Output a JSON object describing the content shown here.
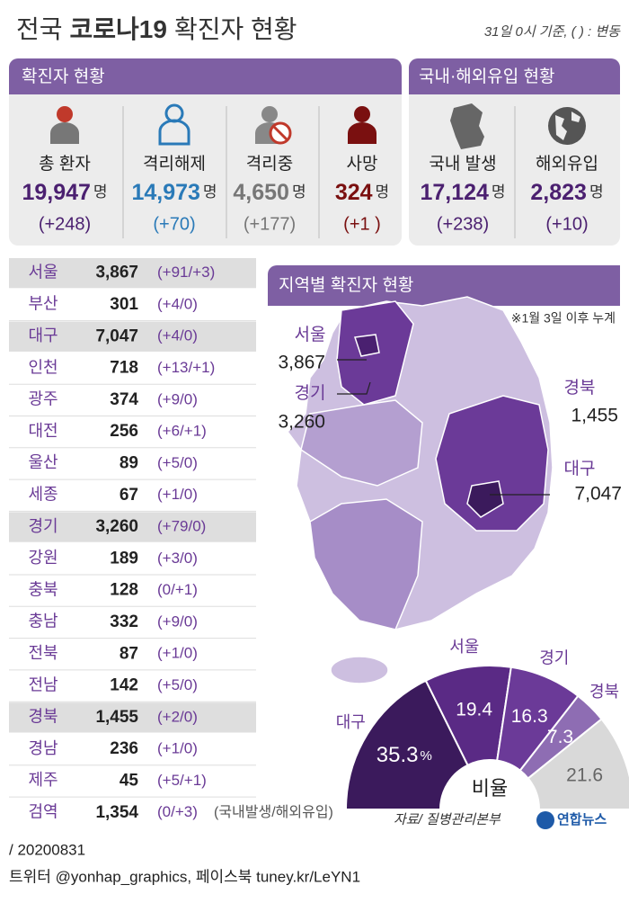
{
  "header": {
    "title_parts": [
      "전국",
      "코로나19",
      "확진자 현황"
    ],
    "note": "31일 0시 기준, ( ) : 변동"
  },
  "summary": {
    "title": "확진자 현황",
    "unit": "명",
    "items": [
      {
        "label": "총 환자",
        "count": "19,947",
        "change": "(+248)"
      },
      {
        "label": "격리해제",
        "count": "14,973",
        "change": "(+70)"
      },
      {
        "label": "격리중",
        "count": "4,650",
        "change": "(+177)"
      },
      {
        "label": "사망",
        "count": "324",
        "change": "(+1 )"
      }
    ]
  },
  "origin": {
    "title": "국내·해외유입 현황",
    "items": [
      {
        "label": "국내 발생",
        "count": "17,124",
        "change": "(+238)"
      },
      {
        "label": "해외유입",
        "count": "2,823",
        "change": "(+10)"
      }
    ]
  },
  "region_table": {
    "rows": [
      {
        "name": "서울",
        "count": "3,867",
        "change": "(+91/+3)",
        "highlight": true
      },
      {
        "name": "부산",
        "count": "301",
        "change": "(+4/0)",
        "highlight": false
      },
      {
        "name": "대구",
        "count": "7,047",
        "change": "(+4/0)",
        "highlight": true
      },
      {
        "name": "인천",
        "count": "718",
        "change": "(+13/+1)",
        "highlight": false
      },
      {
        "name": "광주",
        "count": "374",
        "change": "(+9/0)",
        "highlight": false
      },
      {
        "name": "대전",
        "count": "256",
        "change": "(+6/+1)",
        "highlight": false
      },
      {
        "name": "울산",
        "count": "89",
        "change": "(+5/0)",
        "highlight": false
      },
      {
        "name": "세종",
        "count": "67",
        "change": "(+1/0)",
        "highlight": false
      },
      {
        "name": "경기",
        "count": "3,260",
        "change": "(+79/0)",
        "highlight": true
      },
      {
        "name": "강원",
        "count": "189",
        "change": "(+3/0)",
        "highlight": false
      },
      {
        "name": "충북",
        "count": "128",
        "change": "(0/+1)",
        "highlight": false
      },
      {
        "name": "충남",
        "count": "332",
        "change": "(+9/0)",
        "highlight": false
      },
      {
        "name": "전북",
        "count": "87",
        "change": "(+1/0)",
        "highlight": false
      },
      {
        "name": "전남",
        "count": "142",
        "change": "(+5/0)",
        "highlight": false
      },
      {
        "name": "경북",
        "count": "1,455",
        "change": "(+2/0)",
        "highlight": true
      },
      {
        "name": "경남",
        "count": "236",
        "change": "(+1/0)",
        "highlight": false
      },
      {
        "name": "제주",
        "count": "45",
        "change": "(+5/+1)",
        "highlight": false
      },
      {
        "name": "검역",
        "count": "1,354",
        "change": "(0/+3)",
        "highlight": false
      }
    ],
    "note": "(국내발생/해외유입)"
  },
  "map": {
    "title": "지역별 확진자 현황",
    "note": "※1월 3일 이후 누계",
    "labels": [
      {
        "name": "서울",
        "count": "3,867"
      },
      {
        "name": "경기",
        "count": "3,260"
      },
      {
        "name": "경북",
        "count": "1,455"
      },
      {
        "name": "대구",
        "count": "7,047"
      }
    ]
  },
  "chart_data": {
    "type": "pie",
    "categories": [
      "대구",
      "서울",
      "경기",
      "경북",
      null
    ],
    "values": [
      35.3,
      19.4,
      16.3,
      7.3,
      21.6
    ],
    "colors": [
      "#3b1a5c",
      "#5a2a85",
      "#6b3a98",
      "#8e6db3",
      "#d9d9d9"
    ],
    "unit": "%",
    "center_label": "비율"
  },
  "footer": {
    "source": "자료/ 질병관리본부",
    "logo": "연합뉴스",
    "date": "/ 20200831",
    "credit": "트위터 @yonhap_graphics, 페이스북 tuney.kr/LeYN1"
  }
}
